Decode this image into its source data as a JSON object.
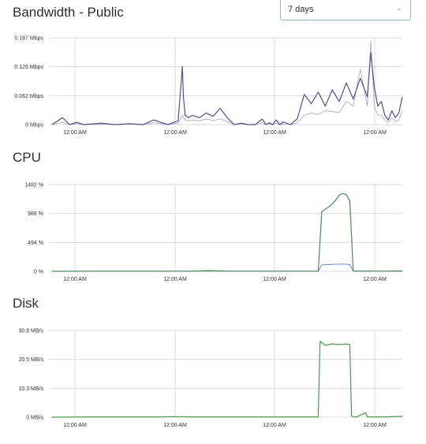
{
  "range_select": {
    "selected": "7 days"
  },
  "icons": {
    "dropdown": "chevron-down-icon"
  },
  "colors": {
    "bandwidth_line": "#5b4d8c",
    "bandwidth_line2": "#b0a8c4",
    "cpu_line": "#4a8a5a",
    "cpu_line2": "#5b7fc0",
    "disk_line": "#4a9a50",
    "grid": "#dcdcdc"
  },
  "chart_data": [
    {
      "type": "line",
      "title": "Bandwidth - Public",
      "yticks": [
        "0.187 Mbps",
        "0.125 Mbps",
        "0.062 Mbps",
        "0 Mbps"
      ],
      "xticks": [
        "12:00 AM",
        "12:00 AM",
        "12:00 AM",
        "12:00 AM"
      ],
      "ylim": [
        0,
        0.187
      ],
      "x": [
        0,
        0.3,
        0.5,
        0.7,
        0.9,
        1.4,
        1.8,
        2.2,
        2.6,
        2.9,
        3.3,
        3.6,
        3.72,
        3.75,
        3.8,
        3.9,
        4.0,
        4.2,
        4.4,
        4.6,
        4.8,
        5.0,
        5.2,
        5.4,
        5.6,
        5.8,
        6.0,
        6.1,
        6.2,
        6.3,
        6.4,
        6.5,
        6.6,
        6.8,
        7.0,
        7.2,
        7.4,
        7.6,
        7.8,
        8.0,
        8.2,
        8.4,
        8.6,
        8.8,
        9.0,
        9.1,
        9.2,
        9.3,
        9.4,
        9.5,
        9.6,
        9.7,
        9.8,
        9.9,
        10.0
      ],
      "series": [
        {
          "values": [
            0,
            0.015,
            0,
            0.005,
            0,
            0.003,
            0,
            0.002,
            0,
            0.01,
            0,
            0.008,
            0.125,
            0.06,
            0.02,
            0.015,
            0.02,
            0.015,
            0.025,
            0.018,
            0.035,
            0.015,
            0,
            0.003,
            0,
            0,
            0.012,
            0,
            0.004,
            0,
            0.01,
            0,
            0.006,
            0,
            0.012,
            0.065,
            0.045,
            0.07,
            0.04,
            0.075,
            0.05,
            0.09,
            0.055,
            0.1,
            0.06,
            0.155,
            0.08,
            0.04,
            0.05,
            0.02,
            0.01,
            0.03,
            0.015,
            0.025,
            0.06
          ]
        },
        {
          "values": [
            0,
            0.005,
            0,
            0.002,
            0,
            0.001,
            0,
            0.001,
            0,
            0.004,
            0,
            0.003,
            0.02,
            0.015,
            0.01,
            0.008,
            0.01,
            0.008,
            0.012,
            0.009,
            0.012,
            0.007,
            0,
            0.001,
            0,
            0,
            0.004,
            0,
            0.001,
            0,
            0.003,
            0,
            0.002,
            0,
            0.003,
            0.02,
            0.025,
            0.022,
            0.03,
            0.028,
            0.026,
            0.05,
            0.04,
            0.12,
            0.04,
            0.18,
            0.04,
            0.02,
            0.02,
            0.01,
            0.005,
            0.015,
            0.007,
            0.01,
            0.03
          ]
        }
      ]
    },
    {
      "type": "line",
      "title": "CPU",
      "yticks": [
        "1482 %",
        "988 %",
        "494 %",
        "0 %"
      ],
      "xticks": [
        "12:00 AM",
        "12:00 AM",
        "12:00 AM",
        "12:00 AM"
      ],
      "ylim": [
        0,
        1482
      ],
      "x": [
        0,
        1.0,
        2.0,
        3.0,
        3.5,
        4.0,
        4.5,
        5.0,
        6.0,
        7.0,
        7.5,
        7.6,
        7.7,
        7.8,
        7.9,
        8.0,
        8.1,
        8.2,
        8.3,
        8.4,
        8.5,
        8.6,
        8.65,
        8.7,
        9.0,
        9.5,
        10.0
      ],
      "series": [
        {
          "values": [
            0,
            2,
            2,
            2,
            3,
            3,
            12,
            3,
            3,
            3,
            3,
            3,
            1020,
            1060,
            1100,
            1150,
            1220,
            1300,
            1330,
            1310,
            1200,
            10,
            5,
            3,
            4,
            3,
            5
          ]
        },
        {
          "values": [
            0,
            1,
            1,
            1,
            1,
            1,
            3,
            1,
            1,
            1,
            1,
            1,
            110,
            112,
            114,
            118,
            120,
            122,
            124,
            120,
            115,
            5,
            3,
            1,
            2,
            1,
            2
          ]
        }
      ]
    },
    {
      "type": "line",
      "title": "Disk",
      "yticks": [
        "30.8 MB/s",
        "20.5 MB/s",
        "10.3 MB/s",
        "0 MB/s"
      ],
      "xticks": [
        "12:00 AM",
        "12:00 AM",
        "12:00 AM",
        "12:00 AM"
      ],
      "ylim": [
        0,
        30.8
      ],
      "x": [
        0,
        1.0,
        2.0,
        3.0,
        3.5,
        4.0,
        5.0,
        6.0,
        7.0,
        7.5,
        7.6,
        7.65,
        7.8,
        8.0,
        8.2,
        8.4,
        8.5,
        8.55,
        8.6,
        8.7,
        8.95,
        9.0,
        9.1,
        9.5,
        10.0
      ],
      "series": [
        {
          "values": [
            0,
            0.1,
            0.1,
            0.1,
            0.2,
            0.1,
            0.1,
            0.1,
            0.1,
            0.1,
            0.1,
            27,
            25.5,
            26,
            25.8,
            26,
            25.8,
            0.4,
            0.2,
            0.1,
            1.6,
            0.1,
            0.1,
            0.1,
            0.3
          ]
        }
      ]
    }
  ]
}
